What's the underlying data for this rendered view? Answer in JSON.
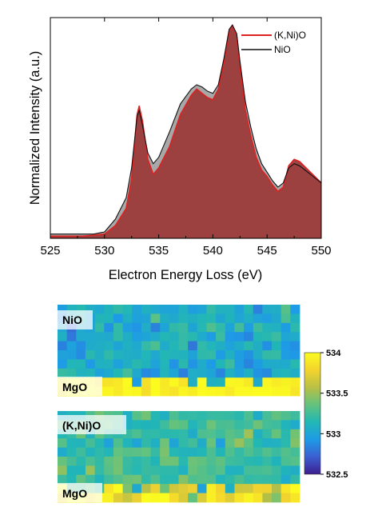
{
  "chart_data": [
    {
      "type": "area",
      "xlabel": "Electron Energy Loss (eV)",
      "ylabel": "Normalized Intensity (a.u.)",
      "xlim": [
        525,
        550
      ],
      "ylim": [
        0,
        1.02
      ],
      "x_ticks": [
        525,
        530,
        535,
        540,
        545,
        550
      ],
      "y_ticks_shown": false,
      "grid": false,
      "legend_position": "top-right",
      "series": [
        {
          "name": "(K,Ni)O",
          "line_color": "#dd2222",
          "fill_color": "#9b3a3a",
          "points": [
            [
              525,
              0.01
            ],
            [
              528,
              0.01
            ],
            [
              529,
              0.015
            ],
            [
              530,
              0.02
            ],
            [
              531,
              0.06
            ],
            [
              532,
              0.14
            ],
            [
              532.5,
              0.28
            ],
            [
              533,
              0.58
            ],
            [
              533.2,
              0.62
            ],
            [
              533.5,
              0.55
            ],
            [
              534,
              0.37
            ],
            [
              534.5,
              0.3
            ],
            [
              535,
              0.33
            ],
            [
              536,
              0.43
            ],
            [
              537,
              0.58
            ],
            [
              538,
              0.67
            ],
            [
              538.5,
              0.7
            ],
            [
              539,
              0.68
            ],
            [
              539.5,
              0.66
            ],
            [
              540,
              0.65
            ],
            [
              540.5,
              0.7
            ],
            [
              541,
              0.82
            ],
            [
              541.5,
              0.97
            ],
            [
              541.8,
              1.0
            ],
            [
              542.2,
              0.95
            ],
            [
              542.5,
              0.8
            ],
            [
              543,
              0.6
            ],
            [
              543.5,
              0.48
            ],
            [
              544,
              0.38
            ],
            [
              544.5,
              0.32
            ],
            [
              545,
              0.29
            ],
            [
              545.5,
              0.25
            ],
            [
              546,
              0.22
            ],
            [
              546.5,
              0.24
            ],
            [
              547,
              0.34
            ],
            [
              547.5,
              0.37
            ],
            [
              548,
              0.36
            ],
            [
              549,
              0.31
            ],
            [
              550,
              0.26
            ]
          ]
        },
        {
          "name": "NiO",
          "line_color": "#111111",
          "fill_color": "#999999",
          "points": [
            [
              525,
              0.02
            ],
            [
              528,
              0.02
            ],
            [
              529,
              0.02
            ],
            [
              530,
              0.03
            ],
            [
              531,
              0.09
            ],
            [
              532,
              0.19
            ],
            [
              532.5,
              0.33
            ],
            [
              533,
              0.57
            ],
            [
              533.2,
              0.6
            ],
            [
              533.5,
              0.53
            ],
            [
              534,
              0.4
            ],
            [
              534.5,
              0.35
            ],
            [
              535,
              0.38
            ],
            [
              536,
              0.5
            ],
            [
              537,
              0.63
            ],
            [
              538,
              0.7
            ],
            [
              538.5,
              0.72
            ],
            [
              539,
              0.71
            ],
            [
              539.5,
              0.69
            ],
            [
              540,
              0.68
            ],
            [
              540.5,
              0.72
            ],
            [
              541,
              0.84
            ],
            [
              541.5,
              0.98
            ],
            [
              541.8,
              1.0
            ],
            [
              542.2,
              0.96
            ],
            [
              542.5,
              0.83
            ],
            [
              543,
              0.64
            ],
            [
              543.5,
              0.52
            ],
            [
              544,
              0.42
            ],
            [
              544.5,
              0.35
            ],
            [
              545,
              0.31
            ],
            [
              545.5,
              0.27
            ],
            [
              546,
              0.24
            ],
            [
              546.5,
              0.26
            ],
            [
              547,
              0.33
            ],
            [
              547.5,
              0.35
            ],
            [
              548,
              0.34
            ],
            [
              549,
              0.3
            ],
            [
              550,
              0.26
            ]
          ]
        }
      ]
    },
    {
      "type": "heatmap",
      "colorbar_ticks": [
        534,
        533.5,
        533,
        532.5
      ],
      "colorbar_range": [
        532.5,
        534
      ],
      "colorscale": [
        "#3d1d8f",
        "#3b5fd1",
        "#1e9be6",
        "#22b7b5",
        "#63c27e",
        "#b8c045",
        "#f4d42d",
        "#fbfb20"
      ],
      "maps": [
        {
          "label": "NiO",
          "substrate_label": "MgO",
          "cols": 26,
          "rows": 10,
          "film_rows": 8,
          "film_mean": 533.05,
          "film_spread": 0.2,
          "substrate_mean": 533.95,
          "substrate_spread": 0.12
        },
        {
          "label": "(K,Ni)O",
          "substrate_label": "MgO",
          "cols": 26,
          "rows": 10,
          "film_rows": 8,
          "film_mean": 533.22,
          "film_spread": 0.22,
          "substrate_mean": 533.85,
          "substrate_spread": 0.45
        }
      ]
    }
  ]
}
